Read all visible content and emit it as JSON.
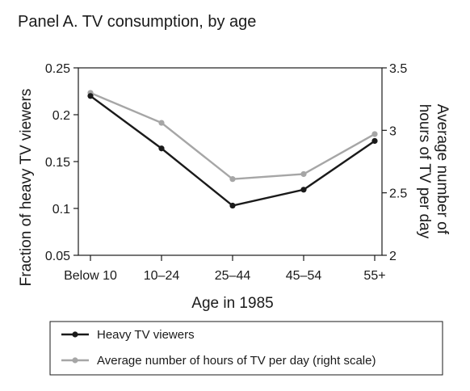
{
  "chart_data": {
    "type": "line",
    "title": "Panel A. TV consumption, by age",
    "xlabel": "Age in 1985",
    "ylabel": "Fraction of heavy TV viewers",
    "y2label_lines": [
      "Average number of",
      "hours of TV per day"
    ],
    "categories": [
      "Below 10",
      "10–24",
      "25–44",
      "45–54",
      "55+"
    ],
    "ylim": [
      0.05,
      0.25
    ],
    "yticks": [
      0.05,
      0.1,
      0.15,
      0.2,
      0.25
    ],
    "ytick_labels": [
      "0.05",
      "0.1",
      "0.15",
      "0.2",
      "0.25"
    ],
    "y2lim": [
      2,
      3.5
    ],
    "y2ticks": [
      2,
      2.5,
      3,
      3.5
    ],
    "y2tick_labels": [
      "2",
      "2.5",
      "3",
      "3.5"
    ],
    "series": [
      {
        "name": "Heavy TV viewers",
        "axis": "left",
        "color": "#1a1a1a",
        "values": [
          0.22,
          0.164,
          0.103,
          0.12,
          0.172
        ]
      },
      {
        "name": "Average number of hours of TV per day (right scale)",
        "axis": "right",
        "color": "#a6a6a6",
        "values": [
          3.3,
          3.06,
          2.61,
          2.65,
          2.97
        ]
      }
    ],
    "grid": false,
    "legend": "bottom"
  }
}
